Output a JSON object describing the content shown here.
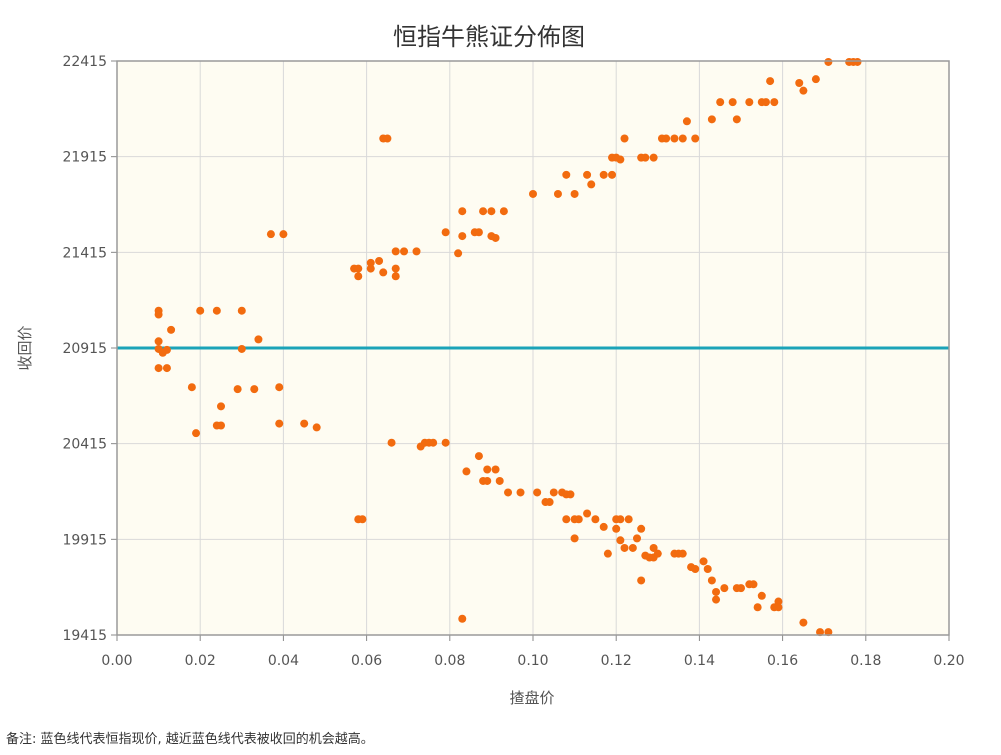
{
  "chart_data": {
    "type": "scatter",
    "title": "恒指牛熊证分佈图",
    "xlabel": "揸盘价",
    "ylabel": "收回价",
    "xlim": [
      0.0,
      0.2
    ],
    "ylim": [
      19415,
      22415
    ],
    "x_ticks": [
      "0.00",
      "0.02",
      "0.04",
      "0.06",
      "0.08",
      "0.10",
      "0.12",
      "0.14",
      "0.16",
      "0.18",
      "0.20"
    ],
    "y_ticks": [
      "22415",
      "21915",
      "21415",
      "20915",
      "20415",
      "19915",
      "19415"
    ],
    "grid": true,
    "reference_line": {
      "y": 20915,
      "color": "#1ba3b8"
    },
    "point_color": "#f26b0f",
    "plot_background": "#fefcf2",
    "points": [
      [
        0.01,
        21110
      ],
      [
        0.01,
        21090
      ],
      [
        0.01,
        20950
      ],
      [
        0.01,
        20910
      ],
      [
        0.011,
        20890
      ],
      [
        0.012,
        20905
      ],
      [
        0.013,
        21010
      ],
      [
        0.01,
        20810
      ],
      [
        0.012,
        20810
      ],
      [
        0.018,
        20710
      ],
      [
        0.019,
        20470
      ],
      [
        0.02,
        21110
      ],
      [
        0.024,
        21110
      ],
      [
        0.024,
        20510
      ],
      [
        0.025,
        20610
      ],
      [
        0.025,
        20510
      ],
      [
        0.029,
        20700
      ],
      [
        0.03,
        21110
      ],
      [
        0.03,
        20910
      ],
      [
        0.033,
        20700
      ],
      [
        0.034,
        20960
      ],
      [
        0.037,
        21510
      ],
      [
        0.039,
        20710
      ],
      [
        0.039,
        20520
      ],
      [
        0.04,
        21510
      ],
      [
        0.045,
        20520
      ],
      [
        0.048,
        20500
      ],
      [
        0.057,
        21330
      ],
      [
        0.058,
        21330
      ],
      [
        0.058,
        21290
      ],
      [
        0.058,
        20020
      ],
      [
        0.059,
        20020
      ],
      [
        0.061,
        21330
      ],
      [
        0.061,
        21360
      ],
      [
        0.063,
        21370
      ],
      [
        0.064,
        21310
      ],
      [
        0.064,
        22010
      ],
      [
        0.065,
        22010
      ],
      [
        0.066,
        20420
      ],
      [
        0.067,
        21330
      ],
      [
        0.067,
        21290
      ],
      [
        0.067,
        21420
      ],
      [
        0.069,
        21420
      ],
      [
        0.072,
        21420
      ],
      [
        0.073,
        20400
      ],
      [
        0.074,
        20420
      ],
      [
        0.075,
        20420
      ],
      [
        0.076,
        20420
      ],
      [
        0.079,
        20420
      ],
      [
        0.079,
        21520
      ],
      [
        0.082,
        21410
      ],
      [
        0.083,
        21500
      ],
      [
        0.083,
        21630
      ],
      [
        0.083,
        19500
      ],
      [
        0.084,
        20270
      ],
      [
        0.086,
        21520
      ],
      [
        0.087,
        21520
      ],
      [
        0.087,
        20350
      ],
      [
        0.088,
        21630
      ],
      [
        0.088,
        20220
      ],
      [
        0.089,
        20220
      ],
      [
        0.089,
        20280
      ],
      [
        0.09,
        21630
      ],
      [
        0.09,
        21500
      ],
      [
        0.091,
        20280
      ],
      [
        0.091,
        21490
      ],
      [
        0.092,
        20220
      ],
      [
        0.093,
        21630
      ],
      [
        0.094,
        20160
      ],
      [
        0.097,
        20160
      ],
      [
        0.1,
        21720
      ],
      [
        0.101,
        20160
      ],
      [
        0.103,
        20110
      ],
      [
        0.104,
        20110
      ],
      [
        0.105,
        20160
      ],
      [
        0.106,
        21720
      ],
      [
        0.107,
        20160
      ],
      [
        0.108,
        21820
      ],
      [
        0.108,
        20150
      ],
      [
        0.108,
        20020
      ],
      [
        0.109,
        20150
      ],
      [
        0.11,
        21720
      ],
      [
        0.11,
        20020
      ],
      [
        0.11,
        19920
      ],
      [
        0.111,
        20020
      ],
      [
        0.113,
        21820
      ],
      [
        0.113,
        20050
      ],
      [
        0.114,
        21770
      ],
      [
        0.115,
        20020
      ],
      [
        0.117,
        21820
      ],
      [
        0.117,
        19980
      ],
      [
        0.118,
        19840
      ],
      [
        0.119,
        21820
      ],
      [
        0.119,
        21910
      ],
      [
        0.12,
        21910
      ],
      [
        0.12,
        20020
      ],
      [
        0.12,
        19970
      ],
      [
        0.121,
        21900
      ],
      [
        0.121,
        20020
      ],
      [
        0.121,
        19910
      ],
      [
        0.122,
        22010
      ],
      [
        0.122,
        19870
      ],
      [
        0.123,
        20020
      ],
      [
        0.124,
        19870
      ],
      [
        0.125,
        19920
      ],
      [
        0.126,
        21910
      ],
      [
        0.126,
        19970
      ],
      [
        0.126,
        19700
      ],
      [
        0.127,
        21910
      ],
      [
        0.127,
        19830
      ],
      [
        0.128,
        19820
      ],
      [
        0.129,
        21910
      ],
      [
        0.129,
        19870
      ],
      [
        0.129,
        19820
      ],
      [
        0.13,
        19840
      ],
      [
        0.131,
        22010
      ],
      [
        0.132,
        22010
      ],
      [
        0.134,
        22010
      ],
      [
        0.134,
        19840
      ],
      [
        0.135,
        19840
      ],
      [
        0.136,
        22010
      ],
      [
        0.136,
        19840
      ],
      [
        0.137,
        22100
      ],
      [
        0.138,
        19770
      ],
      [
        0.139,
        22010
      ],
      [
        0.139,
        19760
      ],
      [
        0.141,
        19800
      ],
      [
        0.142,
        19760
      ],
      [
        0.143,
        22110
      ],
      [
        0.143,
        19700
      ],
      [
        0.144,
        19640
      ],
      [
        0.144,
        19600
      ],
      [
        0.145,
        22200
      ],
      [
        0.146,
        19660
      ],
      [
        0.148,
        22200
      ],
      [
        0.149,
        22110
      ],
      [
        0.149,
        19660
      ],
      [
        0.15,
        19660
      ],
      [
        0.152,
        22200
      ],
      [
        0.152,
        19680
      ],
      [
        0.153,
        19680
      ],
      [
        0.154,
        19560
      ],
      [
        0.155,
        22200
      ],
      [
        0.155,
        19620
      ],
      [
        0.156,
        22200
      ],
      [
        0.157,
        22310
      ],
      [
        0.158,
        22200
      ],
      [
        0.158,
        19560
      ],
      [
        0.159,
        19590
      ],
      [
        0.159,
        19560
      ],
      [
        0.164,
        22300
      ],
      [
        0.165,
        22260
      ],
      [
        0.165,
        19480
      ],
      [
        0.168,
        22320
      ],
      [
        0.169,
        19430
      ],
      [
        0.171,
        22410
      ],
      [
        0.171,
        19430
      ],
      [
        0.176,
        22410
      ],
      [
        0.177,
        22410
      ],
      [
        0.178,
        22410
      ]
    ],
    "footnote": "备注:   蓝色线代表恒指现价, 越近蓝色线代表被收回的机会越高。"
  }
}
